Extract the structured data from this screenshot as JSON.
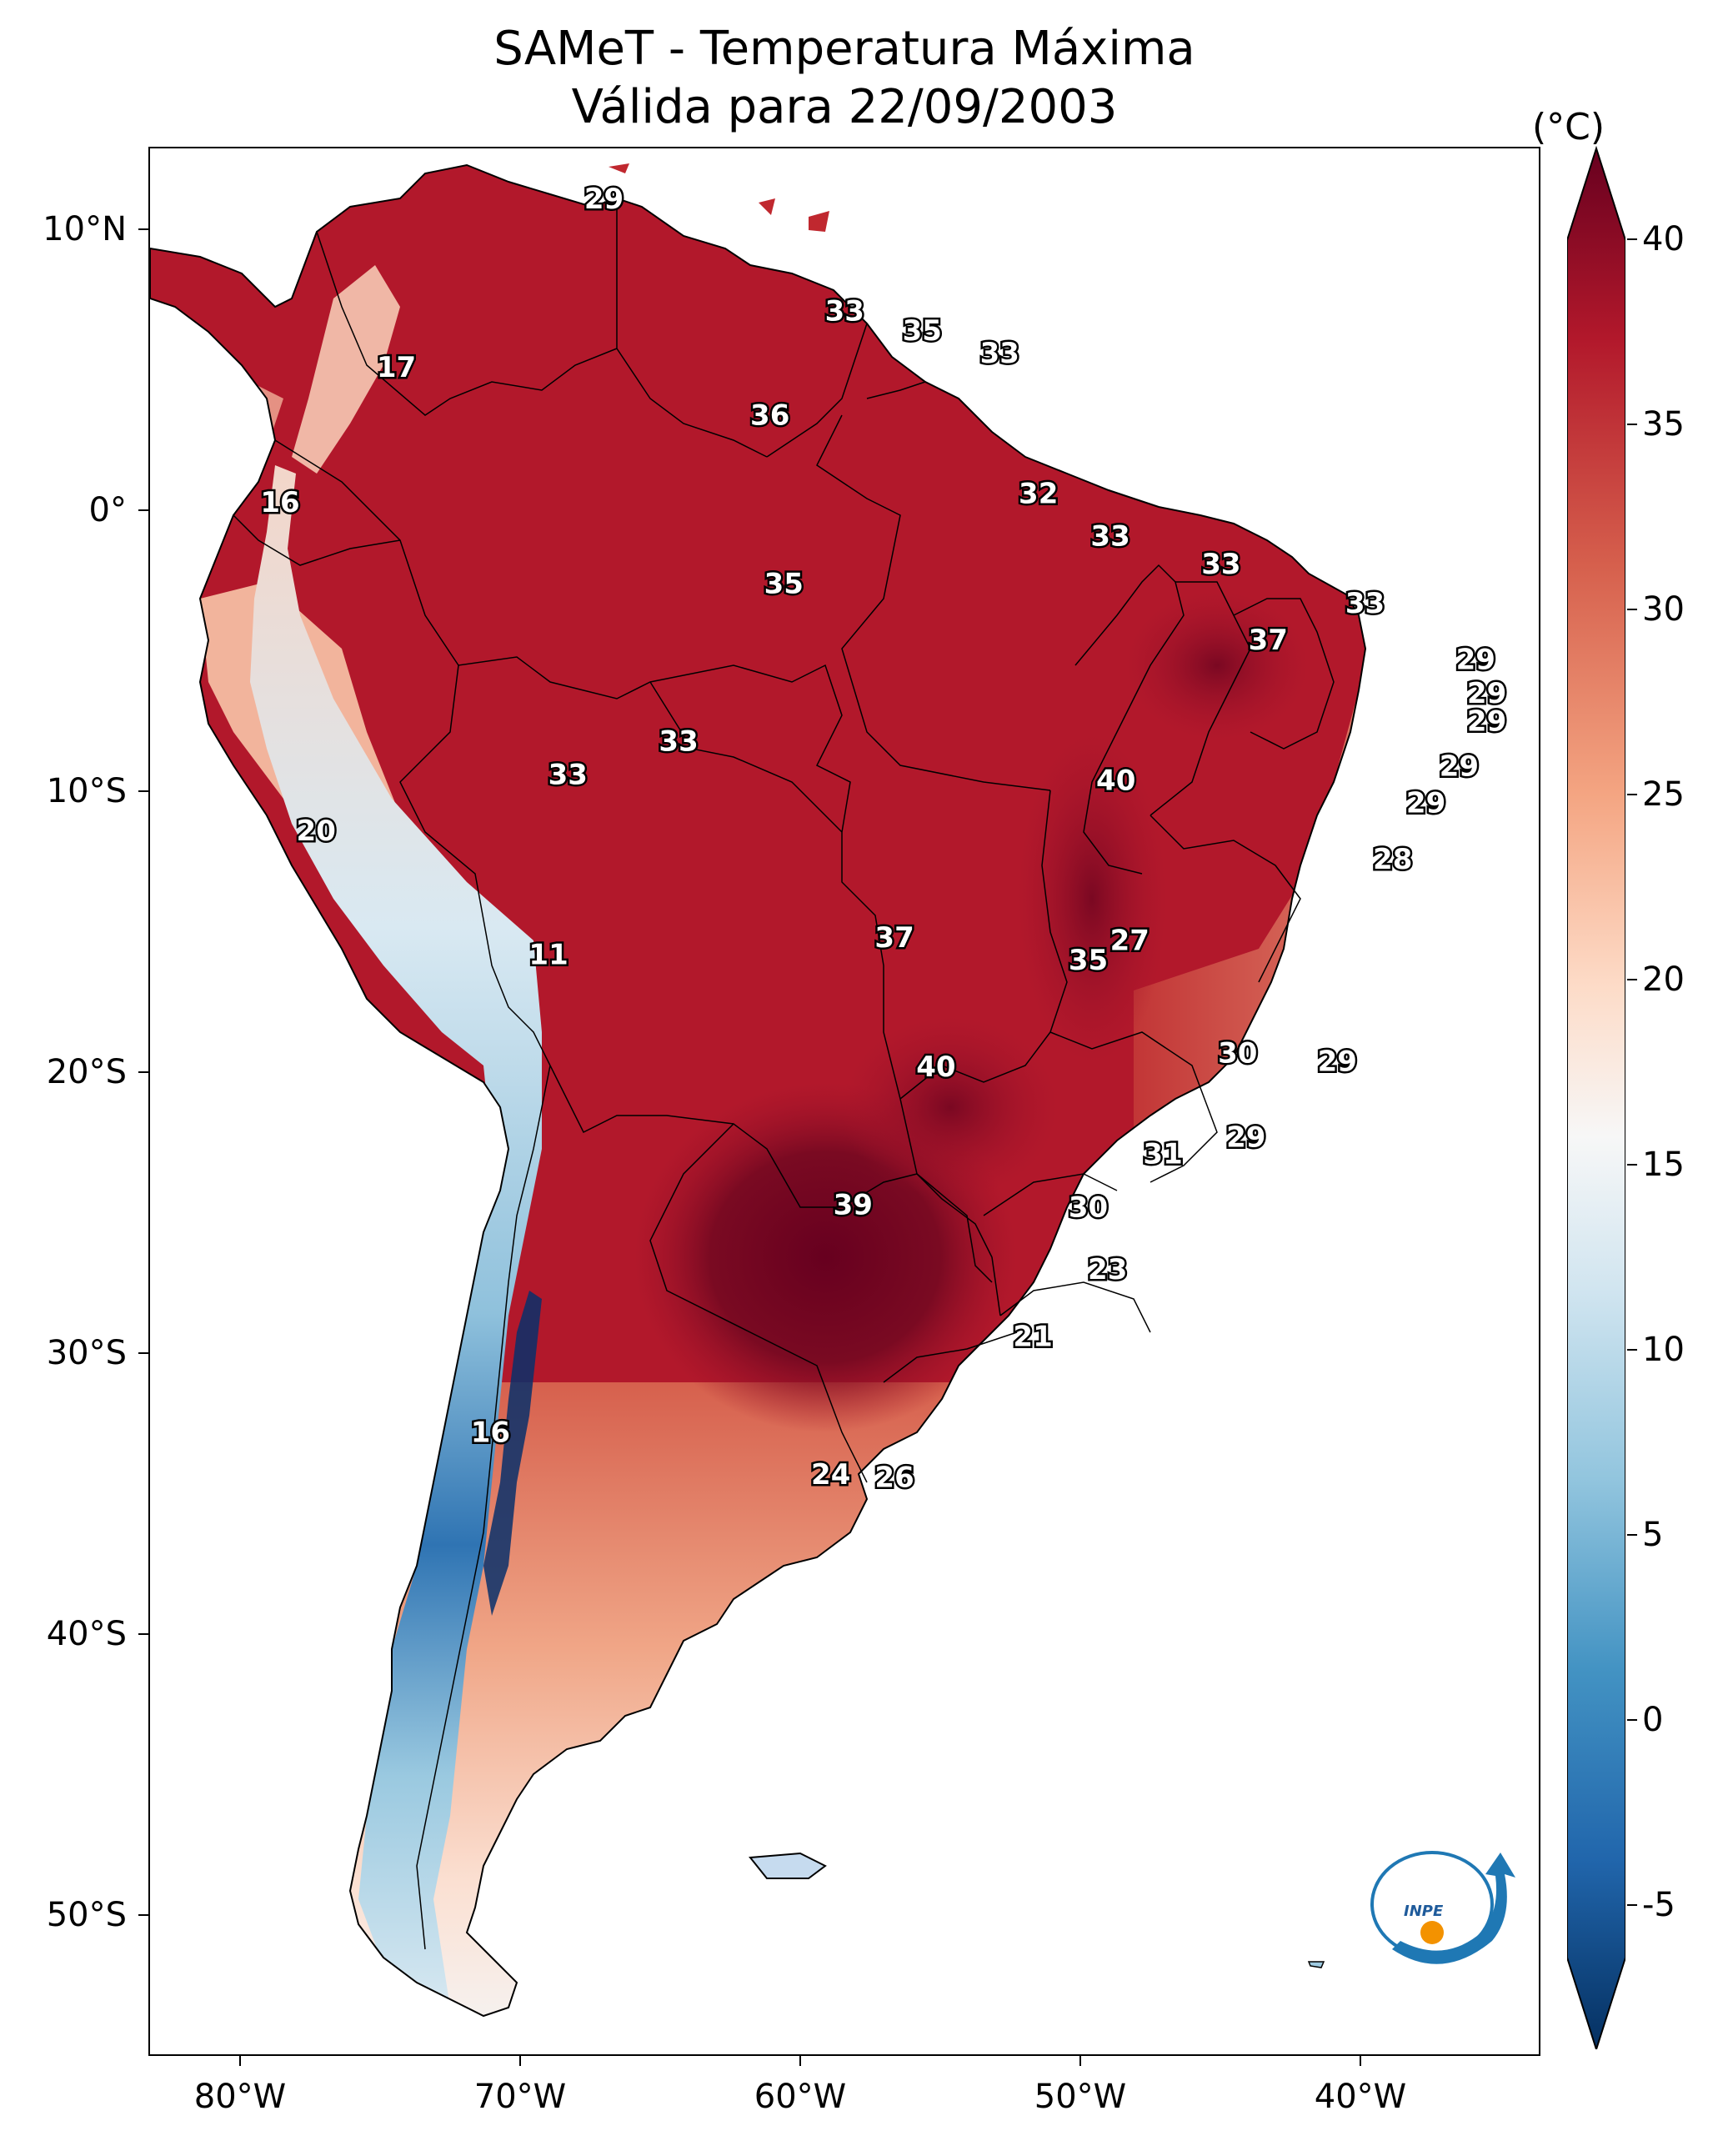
{
  "title": {
    "line1": "SAMeT - Temperatura Máxima",
    "line2": "Válida para 22/09/2003"
  },
  "map": {
    "y_axis_labels": [
      "10°N",
      "0°",
      "10°S",
      "20°S",
      "30°S",
      "40°S",
      "50°S"
    ],
    "x_axis_labels": [
      "80°W",
      "70°W",
      "60°W",
      "50°W",
      "40°W"
    ],
    "contour_labels": [
      {
        "text": "29",
        "lon": -66.5,
        "lat": 10.5
      },
      {
        "text": "33",
        "lon": -57.8,
        "lat": 6.5
      },
      {
        "text": "35",
        "lon": -55.0,
        "lat": 5.8
      },
      {
        "text": "33",
        "lon": -52.2,
        "lat": 5.0
      },
      {
        "text": "17",
        "lon": -74.0,
        "lat": 4.5
      },
      {
        "text": "36",
        "lon": -60.5,
        "lat": 2.8
      },
      {
        "text": "32",
        "lon": -50.8,
        "lat": 0.0
      },
      {
        "text": "16",
        "lon": -78.2,
        "lat": -0.3
      },
      {
        "text": "33",
        "lon": -48.2,
        "lat": -1.5
      },
      {
        "text": "33",
        "lon": -44.2,
        "lat": -2.5
      },
      {
        "text": "35",
        "lon": -60.0,
        "lat": -3.2
      },
      {
        "text": "33",
        "lon": -39.0,
        "lat": -3.9
      },
      {
        "text": "37",
        "lon": -42.5,
        "lat": -5.2
      },
      {
        "text": "29",
        "lon": -35.0,
        "lat": -5.9
      },
      {
        "text": "29",
        "lon": -34.6,
        "lat": -7.1
      },
      {
        "text": "29",
        "lon": -34.6,
        "lat": -8.1
      },
      {
        "text": "33",
        "lon": -63.8,
        "lat": -8.8
      },
      {
        "text": "33",
        "lon": -67.8,
        "lat": -10.0
      },
      {
        "text": "40",
        "lon": -48.0,
        "lat": -10.2
      },
      {
        "text": "29",
        "lon": -35.6,
        "lat": -9.7
      },
      {
        "text": "29",
        "lon": -36.8,
        "lat": -11.0
      },
      {
        "text": "20",
        "lon": -76.9,
        "lat": -12.0
      },
      {
        "text": "28",
        "lon": -38.0,
        "lat": -13.0
      },
      {
        "text": "11",
        "lon": -68.5,
        "lat": -16.4
      },
      {
        "text": "37",
        "lon": -56.0,
        "lat": -15.8
      },
      {
        "text": "27",
        "lon": -47.5,
        "lat": -15.9
      },
      {
        "text": "35",
        "lon": -49.0,
        "lat": -16.6
      },
      {
        "text": "30",
        "lon": -43.6,
        "lat": -19.9
      },
      {
        "text": "29",
        "lon": -40.0,
        "lat": -20.2
      },
      {
        "text": "40",
        "lon": -54.5,
        "lat": -20.4
      },
      {
        "text": "29",
        "lon": -43.3,
        "lat": -22.9
      },
      {
        "text": "31",
        "lon": -46.3,
        "lat": -23.5
      },
      {
        "text": "39",
        "lon": -57.5,
        "lat": -25.3
      },
      {
        "text": "30",
        "lon": -49.0,
        "lat": -25.4
      },
      {
        "text": "23",
        "lon": -48.3,
        "lat": -27.6
      },
      {
        "text": "21",
        "lon": -51.0,
        "lat": -30.0
      },
      {
        "text": "16",
        "lon": -70.6,
        "lat": -33.4
      },
      {
        "text": "24",
        "lon": -58.3,
        "lat": -34.9
      },
      {
        "text": "26",
        "lon": -56.0,
        "lat": -35.0
      }
    ]
  },
  "colorbar": {
    "unit": "(°C)",
    "ticks": [
      "40",
      "35",
      "30",
      "25",
      "20",
      "15",
      "10",
      "5",
      "0",
      "-5"
    ],
    "min": -5,
    "max": 40,
    "colors": [
      "#053061",
      "#2166ac",
      "#4393c3",
      "#92c5de",
      "#d1e5f0",
      "#f7f7f7",
      "#fddbc7",
      "#f4a582",
      "#d6604d",
      "#b2182b",
      "#67001f"
    ]
  },
  "logo": {
    "text": "INPE"
  }
}
